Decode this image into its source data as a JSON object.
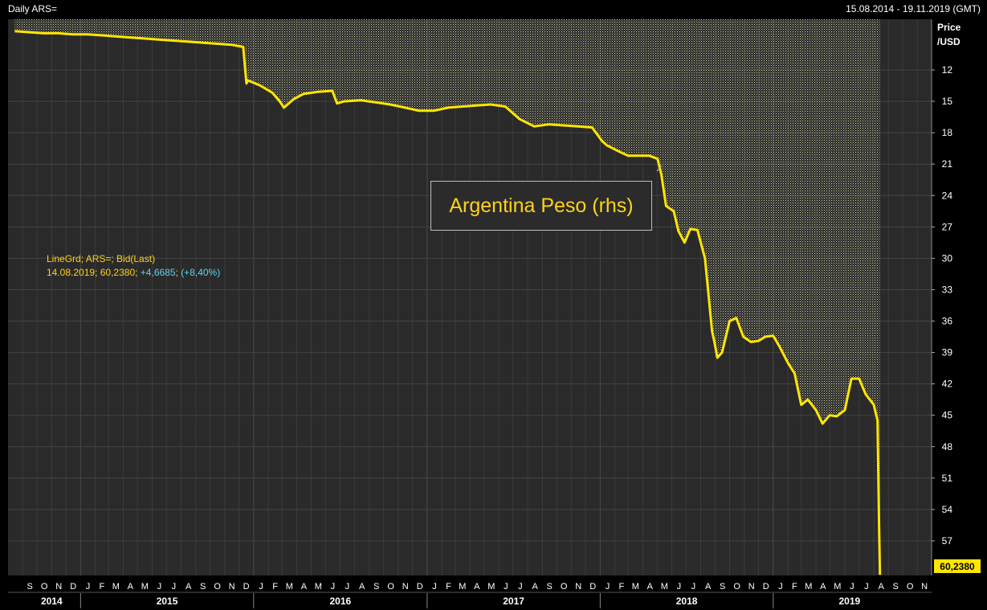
{
  "header": {
    "title": "Daily ARS=",
    "date_range": "15.08.2014 - 19.11.2019 (GMT)"
  },
  "annotation": {
    "text": "Argentina Peso (rhs)"
  },
  "legend": {
    "line1": "LineGrd; ARS=; Bid(Last)",
    "date": "14.08.2019",
    "value": "60,2380",
    "change": "+4,6685",
    "pct": "(+8,40%)"
  },
  "last_value_label": "60,2380",
  "colors": {
    "line": "#ffe600",
    "background": "#2a2a2a",
    "grid": "#3c3c3c",
    "text": "#ffffff"
  },
  "chart_data": {
    "type": "area",
    "title": "Daily ARS=",
    "ylabel": "Price /USD",
    "y_axis_side": "right",
    "y_inverted": true,
    "ylim": [
      9,
      61
    ],
    "y_ticks": [
      12,
      15,
      18,
      21,
      24,
      27,
      30,
      33,
      36,
      39,
      42,
      45,
      48,
      51,
      54,
      57
    ],
    "x_range": [
      "2014-08-15",
      "2019-11-19"
    ],
    "x_month_labels": [
      "S",
      "O",
      "N",
      "D",
      "J",
      "F",
      "M",
      "A",
      "M",
      "J",
      "J",
      "A",
      "S",
      "O",
      "N",
      "D",
      "J",
      "F",
      "M",
      "A",
      "M",
      "J",
      "J",
      "A",
      "S",
      "O",
      "N",
      "D",
      "J",
      "F",
      "M",
      "A",
      "M",
      "J",
      "J",
      "A",
      "S",
      "O",
      "N",
      "D",
      "J",
      "F",
      "M",
      "A",
      "M",
      "J",
      "J",
      "A",
      "S",
      "O",
      "N",
      "D",
      "J",
      "F",
      "M",
      "A",
      "M",
      "J",
      "J",
      "A",
      "S",
      "O",
      "N"
    ],
    "x_years": [
      "2014",
      "2015",
      "2016",
      "2017",
      "2018",
      "2019"
    ],
    "series": [
      {
        "name": "ARS=",
        "x": [
          "2014-08-15",
          "2014-09-15",
          "2014-10-15",
          "2014-11-15",
          "2014-12-15",
          "2015-01-15",
          "2015-02-15",
          "2015-03-15",
          "2015-04-15",
          "2015-05-15",
          "2015-06-15",
          "2015-07-15",
          "2015-08-15",
          "2015-09-15",
          "2015-10-15",
          "2015-11-15",
          "2015-12-10",
          "2015-12-17",
          "2015-12-20",
          "2016-01-15",
          "2016-02-10",
          "2016-02-25",
          "2016-03-05",
          "2016-03-25",
          "2016-04-15",
          "2016-05-15",
          "2016-06-15",
          "2016-06-25",
          "2016-07-10",
          "2016-08-15",
          "2016-09-15",
          "2016-10-15",
          "2016-11-15",
          "2016-12-15",
          "2017-01-15",
          "2017-02-15",
          "2017-03-15",
          "2017-04-15",
          "2017-05-15",
          "2017-06-15",
          "2017-07-15",
          "2017-08-15",
          "2017-09-15",
          "2017-10-15",
          "2017-11-15",
          "2017-12-15",
          "2018-01-05",
          "2018-01-15",
          "2018-02-10",
          "2018-03-01",
          "2018-03-20",
          "2018-04-15",
          "2018-05-02",
          "2018-05-10",
          "2018-05-20",
          "2018-06-05",
          "2018-06-15",
          "2018-06-28",
          "2018-07-10",
          "2018-07-25",
          "2018-08-10",
          "2018-08-25",
          "2018-08-30",
          "2018-09-05",
          "2018-09-15",
          "2018-10-01",
          "2018-10-15",
          "2018-10-30",
          "2018-11-15",
          "2018-12-01",
          "2018-12-15",
          "2019-01-01",
          "2019-01-15",
          "2019-02-01",
          "2019-02-15",
          "2019-03-01",
          "2019-03-15",
          "2019-04-01",
          "2019-04-15",
          "2019-04-30",
          "2019-05-15",
          "2019-06-01",
          "2019-06-15",
          "2019-07-01",
          "2019-07-15",
          "2019-08-01",
          "2019-08-09",
          "2019-08-12",
          "2019-08-14"
        ],
        "values": [
          8.3,
          8.4,
          8.5,
          8.5,
          8.6,
          8.6,
          8.7,
          8.8,
          8.9,
          9.0,
          9.1,
          9.2,
          9.3,
          9.4,
          9.5,
          9.6,
          9.8,
          13.3,
          13.0,
          13.5,
          14.2,
          15.0,
          15.6,
          14.8,
          14.3,
          14.1,
          14.0,
          15.2,
          15.0,
          14.9,
          15.1,
          15.3,
          15.6,
          15.9,
          15.9,
          15.6,
          15.5,
          15.4,
          15.3,
          15.5,
          16.7,
          17.4,
          17.2,
          17.3,
          17.4,
          17.5,
          18.8,
          19.2,
          19.8,
          20.2,
          20.2,
          20.2,
          20.5,
          22.0,
          25.0,
          25.5,
          27.4,
          28.5,
          27.2,
          27.3,
          30.0,
          37.0,
          38.0,
          39.5,
          39.0,
          36.0,
          35.7,
          37.5,
          38.0,
          37.9,
          37.5,
          37.4,
          38.5,
          40.0,
          41.0,
          44.0,
          43.5,
          44.5,
          45.8,
          45.0,
          45.1,
          44.5,
          41.5,
          41.5,
          43.0,
          44.0,
          45.5,
          55.0,
          60.238
        ]
      }
    ]
  }
}
